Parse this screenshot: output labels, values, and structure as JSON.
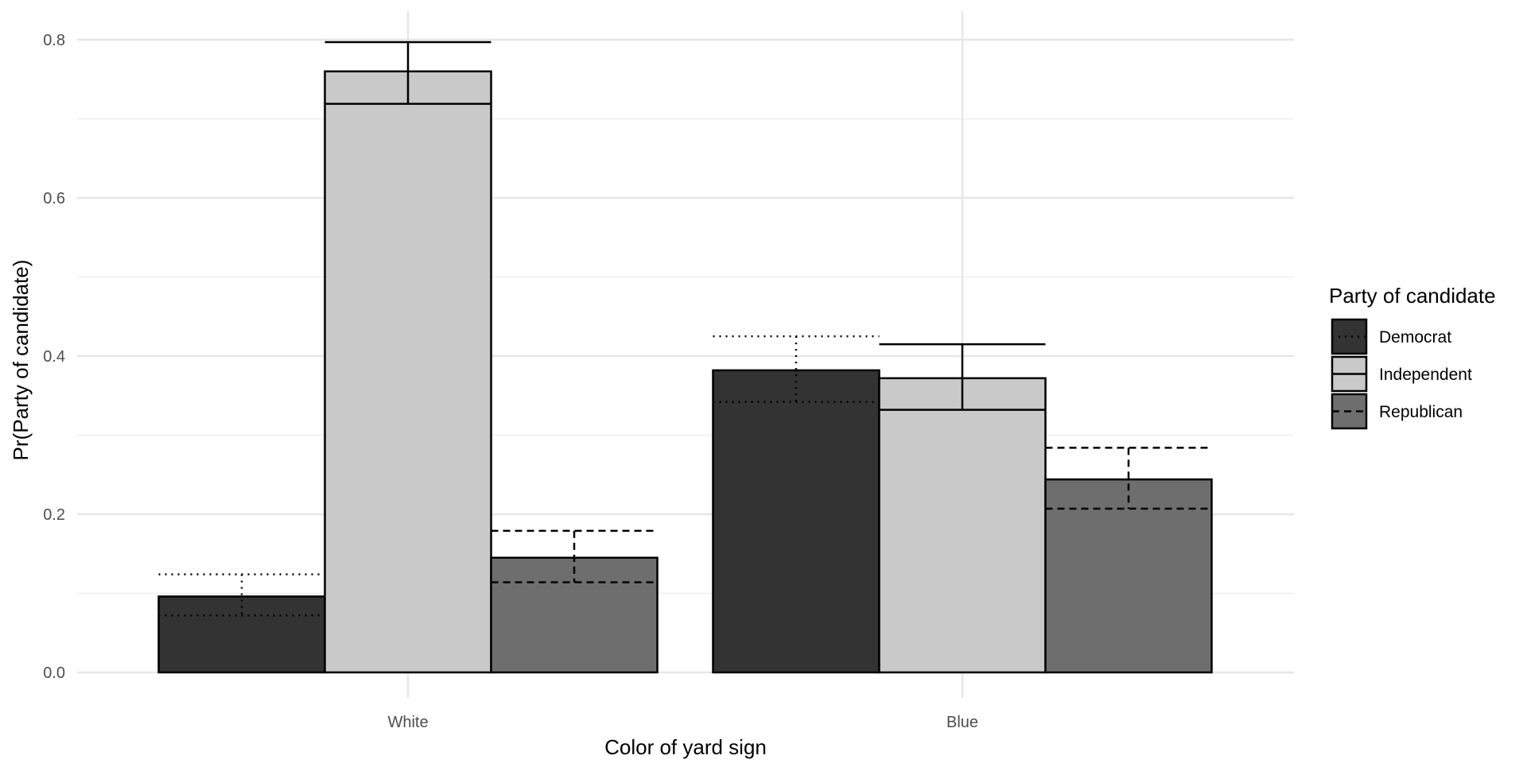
{
  "chart_data": {
    "type": "bar",
    "xlabel": "Color of yard sign",
    "ylabel": "Pr(Party of candidate)",
    "categories": [
      "White",
      "Blue"
    ],
    "ylim": [
      0,
      0.8
    ],
    "yticks": [
      "0.0",
      "0.2",
      "0.4",
      "0.6",
      "0.8"
    ],
    "grid": true,
    "legend": {
      "title": "Party of candidate",
      "position": "right"
    },
    "series": [
      {
        "name": "Democrat",
        "values": [
          0.096,
          0.382
        ],
        "ci_low": [
          0.072,
          0.342
        ],
        "ci_high": [
          0.124,
          0.425
        ],
        "fill": "#333333",
        "line": "dotted"
      },
      {
        "name": "Independent",
        "values": [
          0.76,
          0.372
        ],
        "ci_low": [
          0.719,
          0.332
        ],
        "ci_high": [
          0.797,
          0.415
        ],
        "fill": "#c9c9c9",
        "line": "solid"
      },
      {
        "name": "Republican",
        "values": [
          0.145,
          0.244
        ],
        "ci_low": [
          0.114,
          0.207
        ],
        "ci_high": [
          0.179,
          0.284
        ],
        "fill": "#6e6e6e",
        "line": "dashed"
      }
    ]
  }
}
